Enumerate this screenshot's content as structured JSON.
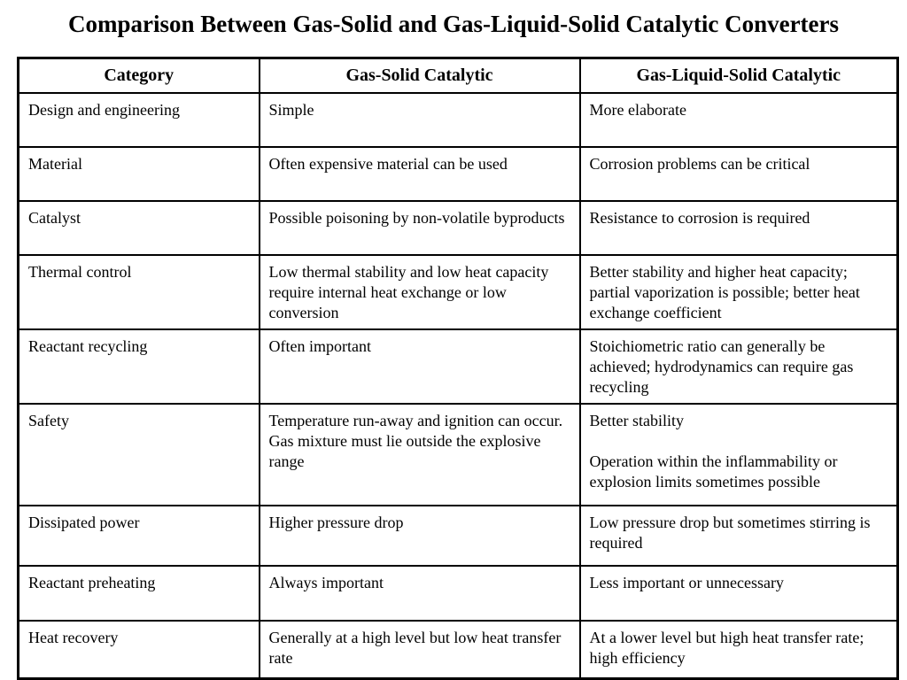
{
  "page": {
    "title": "Comparison Between Gas-Solid and Gas-Liquid-Solid Catalytic Converters"
  },
  "table": {
    "headers": [
      "Category",
      "Gas-Solid Catalytic",
      "Gas-Liquid-Solid Catalytic"
    ],
    "rows": [
      {
        "category": "Design and engineering",
        "gas_solid": "Simple",
        "gas_liquid_solid": "More elaborate"
      },
      {
        "category": "Material",
        "gas_solid": "Often expensive material can be used",
        "gas_liquid_solid": "Corrosion problems can be critical"
      },
      {
        "category": "Catalyst",
        "gas_solid": "Possible poisoning by non-volatile byproducts",
        "gas_liquid_solid": "Resistance to corrosion is required"
      },
      {
        "category": "Thermal control",
        "gas_solid": "Low thermal stability and low heat capacity require internal heat exchange or low conversion",
        "gas_liquid_solid": "Better stability and higher heat capacity; partial vaporization is possible; better heat exchange coefficient"
      },
      {
        "category": "Reactant recycling",
        "gas_solid": "Often important",
        "gas_liquid_solid": "Stoichiometric ratio can generally be achieved; hydrodynamics can require gas recycling"
      },
      {
        "category": "Safety",
        "gas_solid": "Temperature run-away and ignition can occur.  Gas mixture must lie outside the explosive range",
        "gas_liquid_solid": "Better stability\n\nOperation within the inflammability or explosion limits sometimes possible"
      },
      {
        "category": "Dissipated power",
        "gas_solid": "Higher pressure drop",
        "gas_liquid_solid": "Low pressure drop but sometimes stirring is required"
      },
      {
        "category": "Reactant preheating",
        "gas_solid": "Always important",
        "gas_liquid_solid": "Less important or unnecessary"
      },
      {
        "category": "Heat recovery",
        "gas_solid": "Generally at a high level but low heat transfer rate",
        "gas_liquid_solid": "At a lower level but high heat transfer rate; high efficiency"
      }
    ]
  },
  "colors": {
    "text": "#000000",
    "background": "#ffffff",
    "border": "#000000"
  }
}
